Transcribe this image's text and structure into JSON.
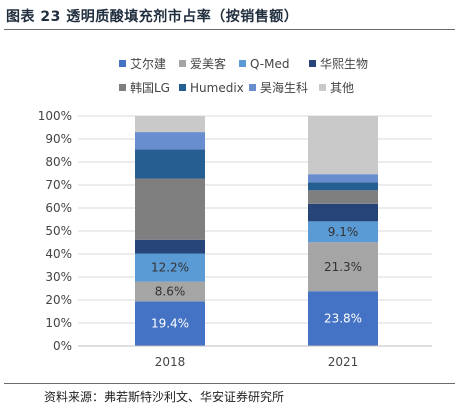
{
  "figure": {
    "title": "图表 23  透明质酸填充剂市占率（按销售额）",
    "source": "资料来源：弗若斯特沙利文、华安证券研究所"
  },
  "chart_data": {
    "type": "bar",
    "stacked": true,
    "categories": [
      "2018",
      "2021"
    ],
    "ylim": [
      0,
      100
    ],
    "yticks": [
      "0%",
      "10%",
      "20%",
      "30%",
      "40%",
      "50%",
      "60%",
      "70%",
      "80%",
      "90%",
      "100%"
    ],
    "legend_position": "top",
    "series": [
      {
        "name": "艾尔建",
        "color": "#4472C4",
        "values": [
          19.4,
          23.8
        ],
        "labels": [
          "19.4%",
          "23.8%"
        ],
        "label_color": "#ffffff"
      },
      {
        "name": "爱美客",
        "color": "#A5A5A5",
        "values": [
          8.6,
          21.3
        ],
        "labels": [
          "8.6%",
          "21.3%"
        ],
        "label_color": "#333333"
      },
      {
        "name": "Q-Med",
        "color": "#5B9BD5",
        "values": [
          12.2,
          9.1
        ],
        "labels": [
          "12.2%",
          "9.1%"
        ],
        "label_color": "#333333"
      },
      {
        "name": "华熙生物",
        "color": "#264478",
        "values": [
          6.0,
          7.6
        ],
        "labels": [
          "",
          ""
        ],
        "label_color": "#ffffff"
      },
      {
        "name": "韩国LG",
        "color": "#7F7F7F",
        "values": [
          26.6,
          5.9
        ],
        "labels": [
          "",
          ""
        ],
        "label_color": "#ffffff"
      },
      {
        "name": "Humedix",
        "color": "#255E91",
        "values": [
          12.7,
          3.5
        ],
        "labels": [
          "",
          ""
        ],
        "label_color": "#ffffff"
      },
      {
        "name": "昊海生科",
        "color": "#698ED0",
        "values": [
          7.5,
          3.5
        ],
        "labels": [
          "",
          ""
        ],
        "label_color": "#ffffff"
      },
      {
        "name": "其他",
        "color": "#C9C9C9",
        "values": [
          7.0,
          25.3
        ],
        "labels": [
          "",
          ""
        ],
        "label_color": "#333333"
      }
    ]
  }
}
